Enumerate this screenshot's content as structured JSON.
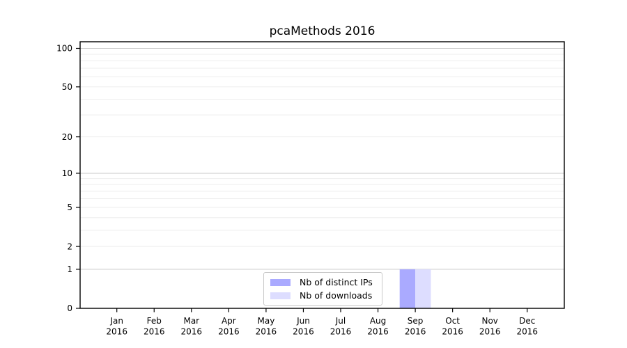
{
  "chart_data": {
    "type": "bar",
    "title": "pcaMethods 2016",
    "categories": [
      "Jan",
      "Feb",
      "Mar",
      "Apr",
      "May",
      "Jun",
      "Jul",
      "Aug",
      "Sep",
      "Oct",
      "Nov",
      "Dec"
    ],
    "category_year": "2016",
    "series": [
      {
        "name": "Nb of distinct IPs",
        "color": "#aaaaff",
        "values": [
          0,
          0,
          0,
          0,
          0,
          0,
          0,
          0,
          1,
          0,
          0,
          0
        ]
      },
      {
        "name": "Nb of downloads",
        "color": "#ddddff",
        "values": [
          0,
          0,
          0,
          0,
          0,
          0,
          0,
          0,
          1,
          0,
          0,
          0
        ]
      }
    ],
    "y_axis": {
      "scale": "log1p",
      "range": [
        0,
        100
      ],
      "ticks": [
        0,
        1,
        2,
        5,
        10,
        20,
        50,
        100
      ],
      "major_gridlines": [
        1,
        10,
        100
      ],
      "minor_gridlines": [
        2,
        3,
        4,
        5,
        6,
        7,
        8,
        9,
        20,
        30,
        40,
        50,
        60,
        70,
        80,
        90
      ]
    },
    "legend": {
      "position": "bottom-center",
      "entries": [
        "Nb of distinct IPs",
        "Nb of downloads"
      ]
    },
    "colors": {
      "grid_major": "#c9c9c9",
      "grid_minor": "#ededed",
      "axis": "#000000",
      "text": "#000000",
      "background": "#ffffff"
    }
  }
}
